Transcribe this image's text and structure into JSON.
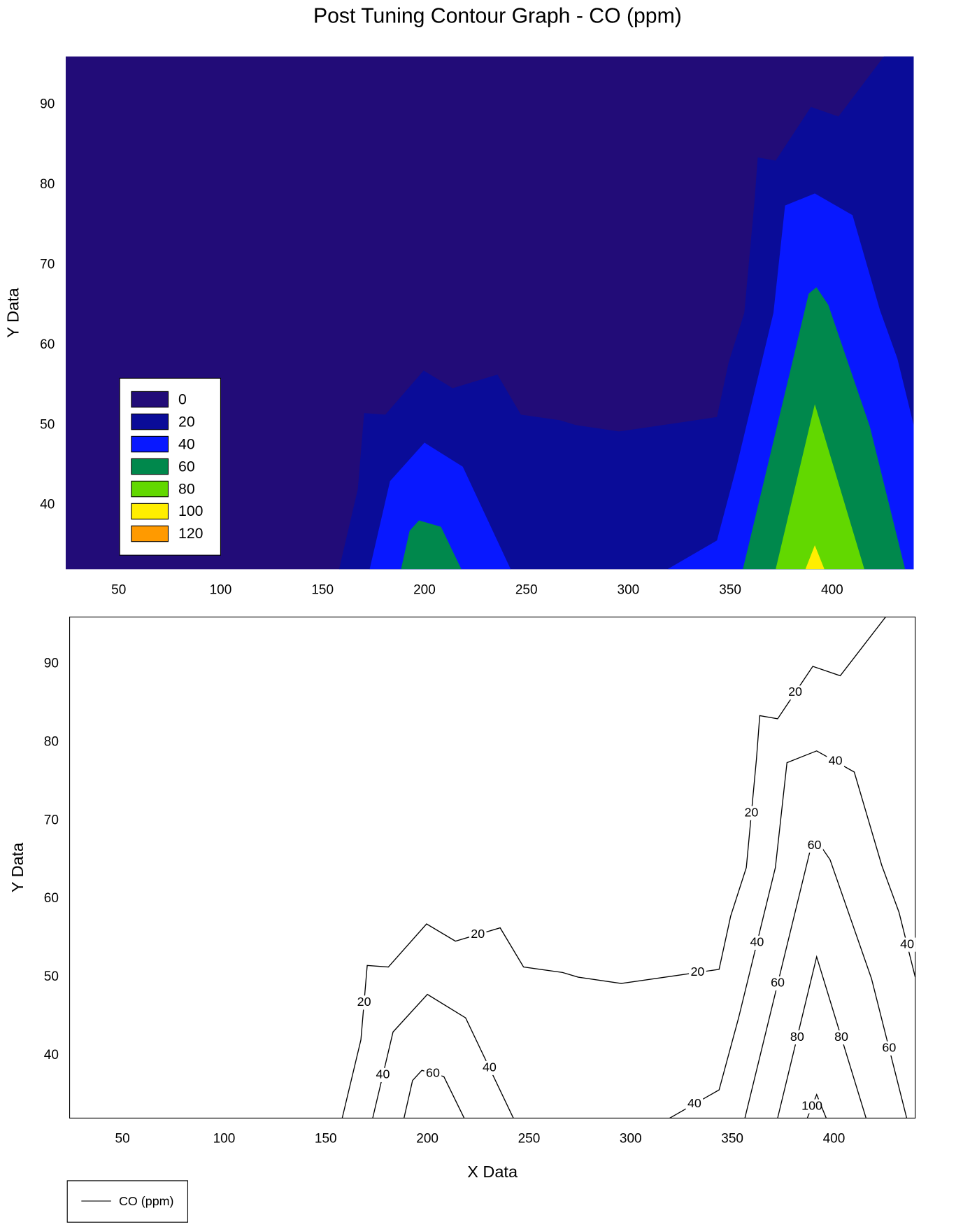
{
  "chart_data": [
    {
      "type": "contourf",
      "title": "Post Tuning Contour Graph - CO (ppm)",
      "y_label": "Y Data",
      "xlim": [
        24,
        440
      ],
      "ylim": [
        32,
        96
      ],
      "xticks": [
        50,
        100,
        150,
        200,
        250,
        300,
        350,
        400
      ],
      "yticks": [
        40,
        50,
        60,
        70,
        80,
        90
      ],
      "levels": [
        0,
        20,
        40,
        60,
        80,
        100,
        120
      ],
      "level_colors": [
        "#220c78",
        "#0a0c98",
        "#0818ff",
        "#00884c",
        "#62d800",
        "#ffee00",
        "#ff9a00"
      ]
    },
    {
      "type": "contour",
      "x_label": "X Data",
      "y_label": "Y Data",
      "legend_label": "CO (ppm)",
      "line_color": "#000000",
      "xlim": [
        24,
        440
      ],
      "ylim": [
        32,
        96
      ],
      "xticks": [
        50,
        100,
        150,
        200,
        250,
        300,
        350,
        400
      ],
      "yticks": [
        40,
        50,
        60,
        70,
        80,
        90
      ],
      "contours": [
        {
          "level": 20,
          "x": [
            158.1,
            167.3,
            170.4,
            180.8,
            199.6,
            213.8,
            235.8,
            247.3,
            266.5,
            274.2,
            295.4,
            322.3,
            343.5,
            349.2,
            356.9,
            361.9,
            363.5,
            372.3,
            389.6,
            403.1,
            425.4
          ],
          "y": [
            32,
            42,
            51.5,
            51.3,
            56.8,
            54.6,
            56.3,
            51.3,
            50.6,
            50,
            49.2,
            50.2,
            51,
            57.8,
            64,
            77.9,
            83.4,
            83,
            89.7,
            88.5,
            96
          ]
        },
        {
          "level": 40,
          "x": [
            173.1,
            183.1,
            200,
            218.8,
            242.3
          ],
          "y": [
            32,
            43,
            47.8,
            44.8,
            32
          ]
        },
        {
          "level": 40,
          "x": [
            319.2,
            343.5,
            353.1,
            371.2,
            376.9,
            391.5,
            410,
            423.5,
            432,
            440
          ],
          "y": [
            32,
            35.6,
            44.8,
            64,
            77.4,
            78.9,
            76.2,
            64.3,
            58.3,
            50
          ]
        },
        {
          "level": 60,
          "x": [
            188.5,
            192.7,
            197.3,
            208.1,
            218.1
          ],
          "y": [
            32,
            36.8,
            38.1,
            37.3,
            32
          ]
        },
        {
          "level": 60,
          "x": [
            356.2,
            388.5,
            392.3,
            398.1,
            418.5,
            435.8
          ],
          "y": [
            32,
            66.4,
            67.2,
            65,
            49.8,
            32
          ]
        },
        {
          "level": 80,
          "x": [
            372.3,
            391.5,
            415.8
          ],
          "y": [
            32,
            52.6,
            32
          ]
        },
        {
          "level": 100,
          "x": [
            386.9,
            391.5,
            396.2
          ],
          "y": [
            32,
            35,
            32
          ]
        }
      ]
    }
  ]
}
